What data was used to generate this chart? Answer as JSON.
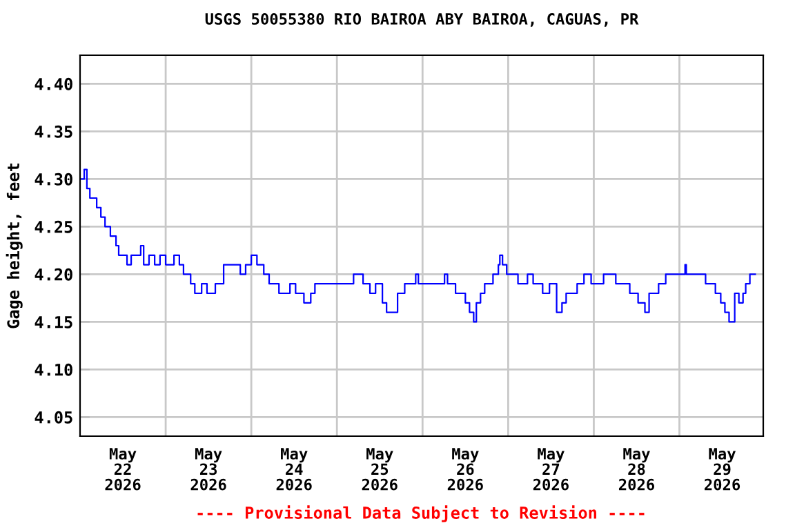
{
  "chart_data": {
    "type": "step",
    "title": "USGS 50055380 RIO BAIROA ABY BAIROA, CAGUAS, PR",
    "ylabel": "Gage height, feet",
    "annotations": [
      "---- Provisional Data Subject to Revision ----"
    ],
    "x": [
      "2026-05-22T00:00",
      "2026-05-22T01:10",
      "2026-05-22T01:55",
      "2026-05-22T02:45",
      "2026-05-22T04:40",
      "2026-05-22T05:50",
      "2026-05-22T07:00",
      "2026-05-22T08:30",
      "2026-05-22T10:05",
      "2026-05-22T10:50",
      "2026-05-22T13:10",
      "2026-05-22T14:20",
      "2026-05-22T17:00",
      "2026-05-22T17:50",
      "2026-05-22T19:20",
      "2026-05-22T20:55",
      "2026-05-22T22:25",
      "2026-05-23T00:00",
      "2026-05-23T02:20",
      "2026-05-23T03:50",
      "2026-05-23T05:00",
      "2026-05-23T07:00",
      "2026-05-23T08:10",
      "2026-05-23T10:05",
      "2026-05-23T11:35",
      "2026-05-23T13:55",
      "2026-05-23T16:15",
      "2026-05-23T20:55",
      "2026-05-23T22:25",
      "2026-05-24T00:00",
      "2026-05-24T01:35",
      "2026-05-24T03:30",
      "2026-05-24T05:00",
      "2026-05-24T07:45",
      "2026-05-24T10:50",
      "2026-05-24T12:25",
      "2026-05-24T14:45",
      "2026-05-24T16:40",
      "2026-05-24T17:50",
      "2026-05-25T03:50",
      "2026-05-25T04:40",
      "2026-05-25T07:20",
      "2026-05-25T09:15",
      "2026-05-25T10:50",
      "2026-05-25T12:45",
      "2026-05-25T13:55",
      "2026-05-25T17:00",
      "2026-05-25T19:00",
      "2026-05-25T22:05",
      "2026-05-25T22:50",
      "2026-05-26T06:10",
      "2026-05-26T07:00",
      "2026-05-26T09:15",
      "2026-05-26T12:00",
      "2026-05-26T13:10",
      "2026-05-26T14:20",
      "2026-05-26T15:05",
      "2026-05-26T16:15",
      "2026-05-26T17:25",
      "2026-05-26T19:45",
      "2026-05-26T21:15",
      "2026-05-26T21:40",
      "2026-05-26T22:25",
      "2026-05-26T23:35",
      "2026-05-27T02:45",
      "2026-05-27T05:25",
      "2026-05-27T07:00",
      "2026-05-27T09:40",
      "2026-05-27T11:35",
      "2026-05-27T13:35",
      "2026-05-27T15:05",
      "2026-05-27T16:15",
      "2026-05-27T19:20",
      "2026-05-27T21:15",
      "2026-05-27T23:15",
      "2026-05-28T02:45",
      "2026-05-28T06:10",
      "2026-05-28T10:05",
      "2026-05-28T12:25",
      "2026-05-28T14:20",
      "2026-05-28T15:30",
      "2026-05-28T18:10",
      "2026-05-28T20:10",
      "2026-05-29T01:35",
      "2026-05-29T01:55",
      "2026-05-29T07:20",
      "2026-05-29T10:05",
      "2026-05-29T11:35",
      "2026-05-29T12:45",
      "2026-05-29T13:55",
      "2026-05-29T15:30",
      "2026-05-29T16:40",
      "2026-05-29T17:50",
      "2026-05-29T18:35",
      "2026-05-29T19:45",
      "2026-05-29T21:15"
    ],
    "series": [
      {
        "color": "#0000ff",
        "values": [
          4.3,
          4.31,
          4.29,
          4.28,
          4.27,
          4.26,
          4.25,
          4.24,
          4.23,
          4.22,
          4.21,
          4.22,
          4.23,
          4.21,
          4.22,
          4.21,
          4.22,
          4.21,
          4.22,
          4.21,
          4.2,
          4.19,
          4.18,
          4.19,
          4.18,
          4.19,
          4.21,
          4.2,
          4.21,
          4.22,
          4.21,
          4.2,
          4.19,
          4.18,
          4.19,
          4.18,
          4.17,
          4.18,
          4.19,
          4.19,
          4.2,
          4.19,
          4.18,
          4.19,
          4.17,
          4.16,
          4.18,
          4.19,
          4.2,
          4.19,
          4.2,
          4.19,
          4.18,
          4.17,
          4.16,
          4.15,
          4.17,
          4.18,
          4.19,
          4.2,
          4.21,
          4.22,
          4.21,
          4.2,
          4.19,
          4.2,
          4.19,
          4.18,
          4.19,
          4.16,
          4.17,
          4.18,
          4.19,
          4.2,
          4.19,
          4.2,
          4.19,
          4.18,
          4.17,
          4.16,
          4.18,
          4.19,
          4.2,
          4.21,
          4.2,
          4.19,
          4.18,
          4.17,
          4.16,
          4.15,
          4.18,
          4.17,
          4.18,
          4.19,
          4.2,
          4.2
        ]
      }
    ],
    "xlim": [
      "2026-05-22T00:00",
      "2026-05-29T23:30"
    ],
    "xticks": [
      {
        "value": "2026-05-22T12:00",
        "label": "May\n22\n2026"
      },
      {
        "value": "2026-05-23T00:00",
        "label": null
      },
      {
        "value": "2026-05-23T12:00",
        "label": "May\n23\n2026"
      },
      {
        "value": "2026-05-24T00:00",
        "label": null
      },
      {
        "value": "2026-05-24T12:00",
        "label": "May\n24\n2026"
      },
      {
        "value": "2026-05-25T00:00",
        "label": null
      },
      {
        "value": "2026-05-25T12:00",
        "label": "May\n25\n2026"
      },
      {
        "value": "2026-05-26T00:00",
        "label": null
      },
      {
        "value": "2026-05-26T12:00",
        "label": "May\n26\n2026"
      },
      {
        "value": "2026-05-27T00:00",
        "label": null
      },
      {
        "value": "2026-05-27T12:00",
        "label": "May\n27\n2026"
      },
      {
        "value": "2026-05-28T00:00",
        "label": null
      },
      {
        "value": "2026-05-28T12:00",
        "label": "May\n28\n2026"
      },
      {
        "value": "2026-05-29T00:00",
        "label": null
      },
      {
        "value": "2026-05-29T12:00",
        "label": "May\n29\n2026"
      }
    ],
    "ylim": [
      4.03,
      4.43
    ],
    "yticks": [
      {
        "value": 4.05,
        "label": "4.05"
      },
      {
        "value": 4.1,
        "label": "4.10"
      },
      {
        "value": 4.15,
        "label": "4.15"
      },
      {
        "value": 4.2,
        "label": "4.20"
      },
      {
        "value": 4.25,
        "label": "4.25"
      },
      {
        "value": 4.3,
        "label": "4.30"
      },
      {
        "value": 4.35,
        "label": "4.35"
      },
      {
        "value": 4.4,
        "label": "4.40"
      }
    ],
    "grid": true
  }
}
